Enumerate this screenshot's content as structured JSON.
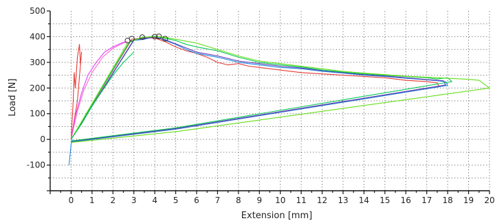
{
  "chart_data": {
    "type": "line",
    "title": "",
    "xlabel": "Extension [mm]",
    "ylabel": "Load [N]",
    "xlim": [
      -1,
      20
    ],
    "ylim": [
      -200,
      500
    ],
    "x_ticks": [
      0,
      1,
      2,
      3,
      4,
      5,
      6,
      7,
      8,
      9,
      10,
      11,
      12,
      13,
      14,
      15,
      16,
      17,
      18,
      19,
      20
    ],
    "y_ticks": [
      -100,
      0,
      100,
      200,
      300,
      400,
      500
    ],
    "grid": true,
    "legend": "none",
    "series": [
      {
        "color": "#e53935",
        "points": [
          [
            0,
            0
          ],
          [
            0.1,
            150
          ],
          [
            0.15,
            260
          ],
          [
            0.2,
            200
          ],
          [
            0.3,
            320
          ],
          [
            0.4,
            370
          ],
          [
            0.45,
            290
          ],
          [
            0.5,
            340
          ],
          [
            0.3,
            150
          ],
          [
            0,
            0
          ]
        ]
      },
      {
        "color": "#e040fb",
        "points": [
          [
            0,
            0
          ],
          [
            0.2,
            90
          ],
          [
            0.5,
            180
          ],
          [
            0.8,
            250
          ],
          [
            1.2,
            300
          ],
          [
            1.6,
            340
          ],
          [
            2,
            360
          ],
          [
            2.4,
            375
          ],
          [
            2.6,
            380
          ]
        ]
      },
      {
        "color": "#ff66cc",
        "points": [
          [
            0,
            0
          ],
          [
            0.3,
            110
          ],
          [
            0.6,
            190
          ],
          [
            1,
            260
          ],
          [
            1.5,
            320
          ],
          [
            2,
            355
          ],
          [
            2.5,
            375
          ],
          [
            2.7,
            382
          ]
        ]
      },
      {
        "color": "#e53935",
        "points": [
          [
            0,
            0
          ],
          [
            2.9,
            390
          ],
          [
            3.5,
            395
          ],
          [
            4,
            395
          ],
          [
            4.5,
            380
          ],
          [
            5,
            360
          ],
          [
            5.5,
            345
          ],
          [
            6,
            335
          ],
          [
            6.5,
            320
          ],
          [
            7,
            300
          ],
          [
            7.5,
            290
          ],
          [
            8,
            295
          ],
          [
            8.5,
            285
          ],
          [
            9,
            280
          ],
          [
            10,
            270
          ],
          [
            11,
            260
          ],
          [
            12,
            255
          ],
          [
            13,
            250
          ],
          [
            14,
            245
          ],
          [
            15,
            240
          ],
          [
            16,
            230
          ],
          [
            17,
            225
          ],
          [
            17.5,
            220
          ],
          [
            17.6,
            205
          ],
          [
            5,
            40
          ],
          [
            0,
            -10
          ]
        ]
      },
      {
        "color": "#1e88e5",
        "points": [
          [
            0,
            0
          ],
          [
            3,
            385
          ],
          [
            3.5,
            390
          ],
          [
            4,
            400
          ],
          [
            4.5,
            385
          ],
          [
            5,
            370
          ],
          [
            5.5,
            350
          ],
          [
            6,
            335
          ],
          [
            7,
            320
          ],
          [
            8,
            300
          ],
          [
            9,
            290
          ],
          [
            10,
            280
          ],
          [
            11,
            275
          ],
          [
            12,
            265
          ],
          [
            13,
            258
          ],
          [
            14,
            250
          ],
          [
            15,
            245
          ],
          [
            16,
            238
          ],
          [
            17,
            232
          ],
          [
            17.9,
            225
          ],
          [
            18,
            210
          ],
          [
            5,
            40
          ],
          [
            0,
            -10
          ]
        ]
      },
      {
        "color": "#5e35b1",
        "points": [
          [
            0,
            0
          ],
          [
            3,
            388
          ],
          [
            4,
            398
          ],
          [
            4.5,
            388
          ],
          [
            5,
            372
          ],
          [
            6,
            340
          ],
          [
            7,
            325
          ],
          [
            8,
            305
          ],
          [
            9,
            295
          ],
          [
            10,
            285
          ],
          [
            11,
            278
          ],
          [
            12,
            268
          ],
          [
            13,
            260
          ],
          [
            14,
            252
          ],
          [
            15,
            247
          ],
          [
            16,
            240
          ],
          [
            17,
            233
          ],
          [
            17.8,
            228
          ],
          [
            17.9,
            212
          ],
          [
            5,
            42
          ],
          [
            0,
            -8
          ]
        ]
      },
      {
        "color": "#00c853",
        "points": [
          [
            0,
            0
          ],
          [
            2.8,
            380
          ],
          [
            3.3,
            395
          ],
          [
            4,
            402
          ],
          [
            5,
            385
          ],
          [
            5.5,
            370
          ],
          [
            6,
            360
          ],
          [
            7,
            345
          ],
          [
            8,
            320
          ],
          [
            9,
            300
          ],
          [
            10,
            290
          ],
          [
            11,
            282
          ],
          [
            12,
            270
          ],
          [
            13,
            262
          ],
          [
            14,
            255
          ],
          [
            15,
            250
          ],
          [
            16,
            245
          ],
          [
            17,
            240
          ],
          [
            17.5,
            235
          ],
          [
            18,
            240
          ],
          [
            18.2,
            225
          ],
          [
            5,
            45
          ],
          [
            0,
            -6
          ]
        ]
      },
      {
        "color": "#64dd17",
        "points": [
          [
            0,
            0
          ],
          [
            2.7,
            375
          ],
          [
            3.4,
            398
          ],
          [
            4.2,
            400
          ],
          [
            5,
            390
          ],
          [
            6,
            375
          ],
          [
            7,
            350
          ],
          [
            8,
            325
          ],
          [
            9,
            305
          ],
          [
            10,
            295
          ],
          [
            11,
            285
          ],
          [
            12,
            275
          ],
          [
            13,
            265
          ],
          [
            14,
            258
          ],
          [
            15,
            252
          ],
          [
            16,
            246
          ],
          [
            17,
            242
          ],
          [
            18,
            238
          ],
          [
            19,
            234
          ],
          [
            19.5,
            230
          ],
          [
            20,
            200
          ],
          [
            5,
            30
          ],
          [
            0,
            -12
          ]
        ]
      },
      {
        "color": "#1e88e5",
        "points": [
          [
            -0.1,
            -100
          ],
          [
            -0.05,
            -60
          ],
          [
            0,
            -20
          ],
          [
            0.05,
            0
          ]
        ]
      },
      {
        "color": "#00c853",
        "points": [
          [
            0,
            0
          ],
          [
            0.5,
            60
          ],
          [
            1,
            130
          ],
          [
            1.5,
            190
          ],
          [
            2,
            250
          ],
          [
            2.5,
            300
          ],
          [
            3,
            340
          ]
        ]
      }
    ],
    "markers": [
      {
        "x": 2.7,
        "y": 385
      },
      {
        "x": 2.9,
        "y": 392
      },
      {
        "x": 3.4,
        "y": 398
      },
      {
        "x": 4.0,
        "y": 400
      },
      {
        "x": 4.2,
        "y": 401
      },
      {
        "x": 4.5,
        "y": 392
      }
    ]
  }
}
